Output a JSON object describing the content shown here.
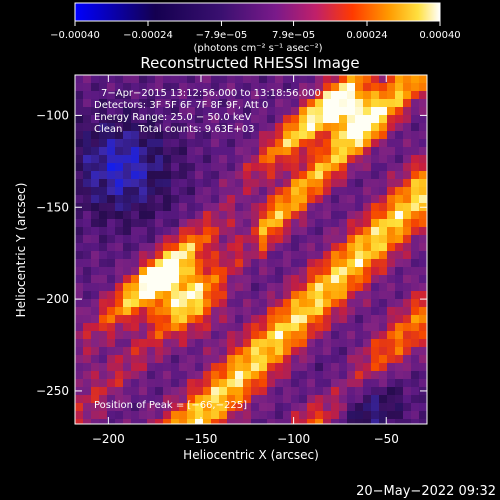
{
  "chart_data": {
    "type": "heatmap",
    "title": "Reconstructed RHESSI Image",
    "xlabel": "Heliocentric X (arcsec)",
    "ylabel": "Heliocentric Y (arcsec)",
    "xlim": [
      -218,
      -28
    ],
    "ylim": [
      -268,
      -78
    ],
    "x_ticks": [
      -200,
      -150,
      -100,
      -50
    ],
    "x_tick_labels": [
      "−200",
      "−150",
      "−100",
      "−50"
    ],
    "y_ticks": [
      -100,
      -150,
      -200,
      -250
    ],
    "y_tick_labels": [
      "−100",
      "−150",
      "−200",
      "−250"
    ],
    "colorbar": {
      "range": [
        -0.0004,
        0.0004
      ],
      "ticks": [
        -0.0004,
        -0.00024,
        -7.9e-05,
        7.9e-05,
        0.00024,
        0.0004
      ],
      "tick_labels": [
        "−0.00040",
        "−0.00024",
        "−7.9e−05",
        "7.9e−05",
        "0.00024",
        "0.00040"
      ],
      "units_label": "(photons cm⁻² s⁻¹ asec⁻²)",
      "colormap": [
        "#0000ff",
        "#1a0080",
        "#000000",
        "#5a1590",
        "#b0206a",
        "#e02a0a",
        "#ff8a00",
        "#ffd000",
        "#ffffff"
      ]
    },
    "annotations": [
      "7−Apr−2015 13:12:56.000 to 13:18:56.000",
      "Detectors: 3F 5F 6F 7F 8F 9F, Att 0",
      "Energy Range: 25.0 − 50.0 keV",
      "Clean     Total counts: 9.63E+03"
    ],
    "peak_label": "Position of Peak = [−66,−225]",
    "peak_position": [
      -66,
      -225
    ],
    "grid": false
  },
  "footer": {
    "timestamp": "20−May−2022 09:32"
  },
  "colors": {
    "background": "#000000",
    "foreground": "#ffffff"
  }
}
